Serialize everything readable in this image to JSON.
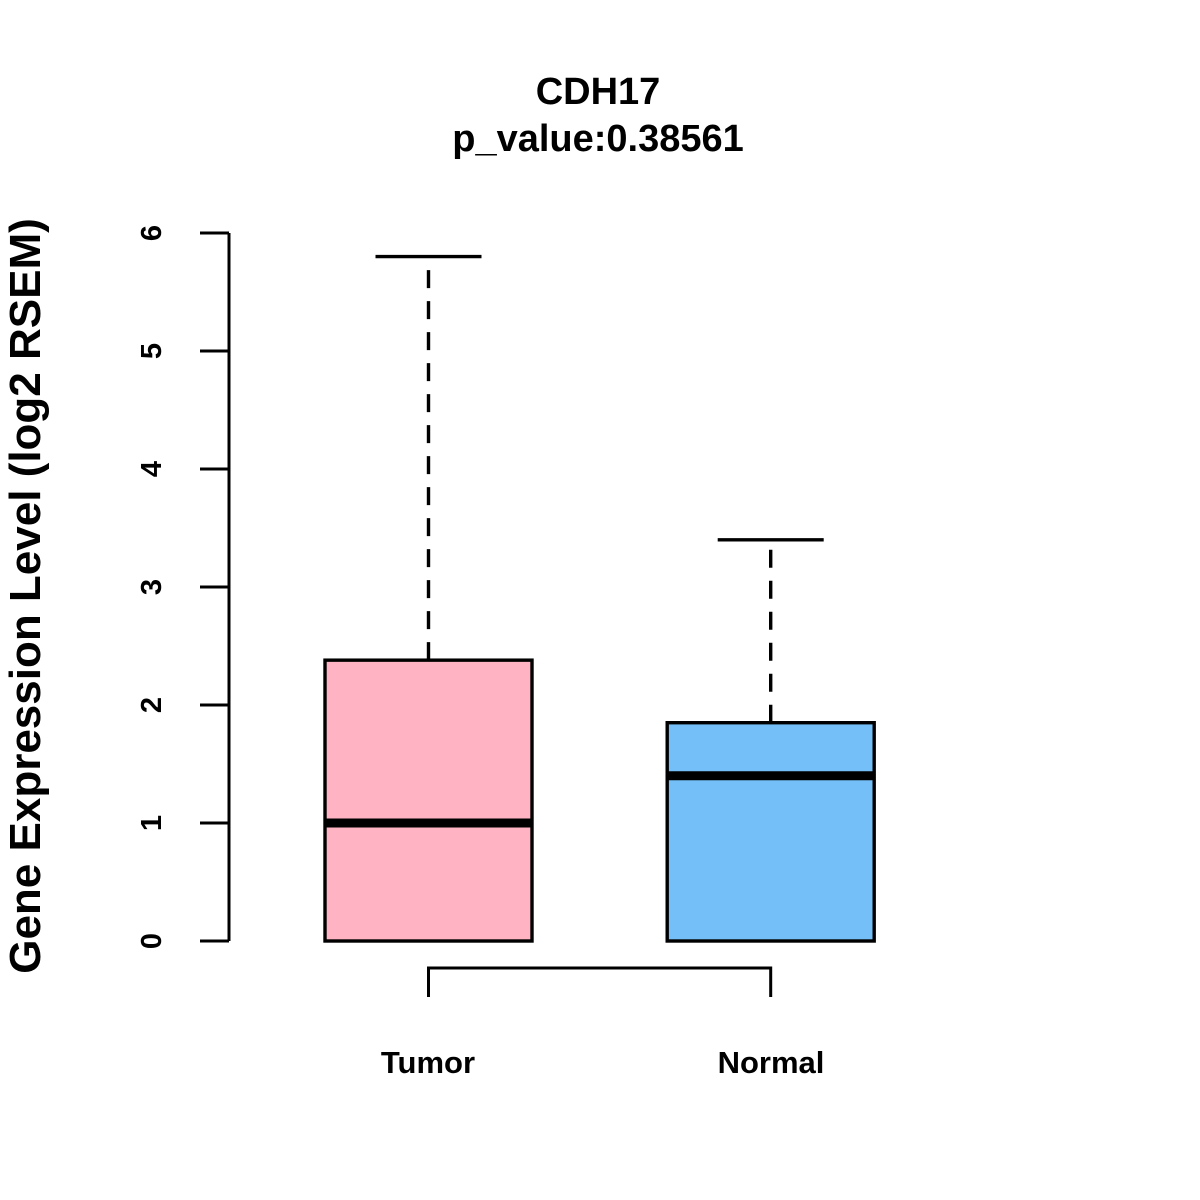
{
  "chart_data": {
    "type": "boxplot",
    "title": "CDH17",
    "subtitle": "p_value:0.38561",
    "p_value": "0.38561",
    "gene": "CDH17",
    "ylabel": "Gene Expression Level (log2 RSEM)",
    "ylim": [
      0,
      6
    ],
    "yticks": [
      0,
      1,
      2,
      3,
      4,
      5,
      6
    ],
    "categories": [
      "Tumor",
      "Normal"
    ],
    "groups": [
      {
        "label": "Tumor",
        "color": "#FFB3C3",
        "lower_whisker": 0,
        "q1": 0,
        "median": 1.0,
        "q3": 2.38,
        "upper_whisker": 5.8
      },
      {
        "label": "Normal",
        "color": "#74BFF7",
        "lower_whisker": 0,
        "q1": 0,
        "median": 1.4,
        "q3": 1.85,
        "upper_whisker": 3.4
      }
    ],
    "style": {
      "axis_color": "#000000",
      "line_color": "#000000",
      "comparison_bracket": true,
      "grid": false,
      "frame": "left-and-bottom-bracket-only"
    }
  }
}
